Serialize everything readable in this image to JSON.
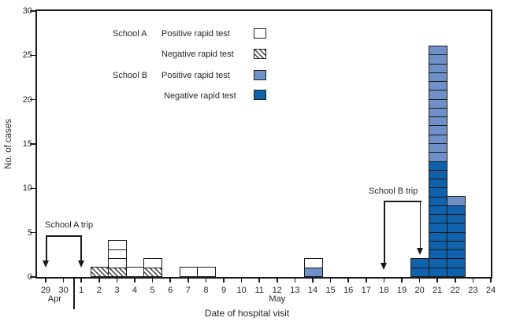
{
  "figure": {
    "x_axis_title": "Date of hospital visit",
    "y_axis_title": "No. of cases",
    "month_labels": {
      "apr": "Apr",
      "may": "May"
    }
  },
  "legend": {
    "groups": [
      {
        "school": "School A",
        "items": [
          {
            "label": "Positive rapid test",
            "swatch": "a_pos"
          },
          {
            "label": "Negative rapid test",
            "swatch": "a_neg"
          }
        ]
      },
      {
        "school": "School B",
        "items": [
          {
            "label": "Positive rapid test",
            "swatch": "b_pos"
          },
          {
            "label": "Negative rapid test",
            "swatch": "b_neg"
          }
        ]
      }
    ]
  },
  "annotations": {
    "school_a_trip": {
      "label": "School A trip",
      "span": "Apr 29 to May 1"
    },
    "school_b_trip": {
      "label": "School B trip",
      "span": "May 18 to May 20"
    }
  },
  "colors": {
    "school_a_positive": "#ffffff",
    "school_a_negative_hatch": "#3c3c3c",
    "school_b_positive": "#7090c8",
    "school_b_negative": "#0f62ab",
    "outline": "#1a1a1a"
  },
  "chart_data": {
    "type": "bar",
    "stacked": true,
    "unit_boxes": true,
    "title": "",
    "xlabel": "Date of hospital visit",
    "ylabel": "No. of cases",
    "ylim": [
      0,
      30
    ],
    "y_ticks": [
      0,
      5,
      10,
      15,
      20,
      25,
      30
    ],
    "x_tick_labels": [
      "29",
      "30",
      "1",
      "2",
      "3",
      "4",
      "5",
      "6",
      "7",
      "8",
      "9",
      "10",
      "11",
      "12",
      "13",
      "14",
      "15",
      "16",
      "17",
      "18",
      "19",
      "20",
      "21",
      "22",
      "23",
      "24"
    ],
    "x_categories": [
      "Apr 29",
      "Apr 30",
      "May 1",
      "May 2",
      "May 3",
      "May 4",
      "May 5",
      "May 6",
      "May 7",
      "May 8",
      "May 9",
      "May 10",
      "May 11",
      "May 12",
      "May 13",
      "May 14",
      "May 15",
      "May 16",
      "May 17",
      "May 18",
      "May 19",
      "May 20",
      "May 21",
      "May 22",
      "May 23",
      "May 24"
    ],
    "series_keys": {
      "a_pos": "School A Positive rapid test",
      "a_neg": "School A Negative rapid test",
      "b_pos": "School B Positive rapid test",
      "b_neg": "School B Negative rapid test"
    },
    "bars": [
      {
        "date": "May 2",
        "slot": 3,
        "total": 1,
        "segments": [
          {
            "series": "a_neg",
            "count": 1
          }
        ]
      },
      {
        "date": "May 3",
        "slot": 4,
        "total": 4,
        "segments": [
          {
            "series": "a_neg",
            "count": 1
          },
          {
            "series": "a_pos",
            "count": 3
          }
        ]
      },
      {
        "date": "May 4",
        "slot": 5,
        "total": 1,
        "segments": [
          {
            "series": "a_pos",
            "count": 1
          }
        ]
      },
      {
        "date": "May 5",
        "slot": 6,
        "total": 2,
        "segments": [
          {
            "series": "a_neg",
            "count": 1
          },
          {
            "series": "a_pos",
            "count": 1
          }
        ]
      },
      {
        "date": "May 7",
        "slot": 8,
        "total": 1,
        "segments": [
          {
            "series": "a_pos",
            "count": 1
          }
        ]
      },
      {
        "date": "May 8",
        "slot": 9,
        "total": 1,
        "segments": [
          {
            "series": "a_pos",
            "count": 1
          }
        ]
      },
      {
        "date": "May 14",
        "slot": 15,
        "total": 2,
        "segments": [
          {
            "series": "b_pos",
            "count": 1
          },
          {
            "series": "a_pos",
            "count": 1
          }
        ]
      },
      {
        "date": "May 20",
        "slot": 21,
        "total": 2,
        "segments": [
          {
            "series": "b_neg",
            "count": 2
          }
        ]
      },
      {
        "date": "May 21",
        "slot": 22,
        "total": 26,
        "segments": [
          {
            "series": "b_neg",
            "count": 13
          },
          {
            "series": "b_pos",
            "count": 13
          }
        ]
      },
      {
        "date": "May 22",
        "slot": 23,
        "total": 9,
        "segments": [
          {
            "series": "b_neg",
            "count": 8
          },
          {
            "series": "b_pos",
            "count": 1
          }
        ]
      }
    ]
  }
}
